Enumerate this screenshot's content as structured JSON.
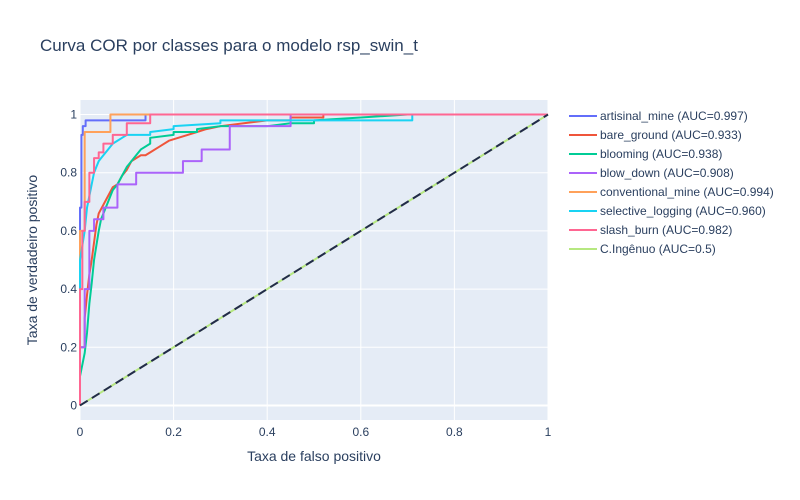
{
  "chart_data": {
    "type": "line",
    "title": "Curva COR por classes para o modelo rsp_swin_t",
    "xlabel": "Taxa de falso positivo",
    "ylabel": "Taxa de verdadeiro positivo",
    "xlim": [
      0,
      1
    ],
    "ylim": [
      -0.05,
      1.05
    ],
    "x_ticks": [
      0,
      0.2,
      0.4,
      0.6,
      0.8,
      1
    ],
    "x_tick_labels": [
      "0",
      "0.2",
      "0.4",
      "0.6",
      "0.8",
      "1"
    ],
    "y_ticks": [
      0,
      0.2,
      0.4,
      0.6,
      0.8,
      1
    ],
    "y_tick_labels": [
      "0",
      "0.2",
      "0.4",
      "0.6",
      "0.8",
      "1"
    ],
    "grid": true,
    "legend_position": "right",
    "series": [
      {
        "name": "artisinal_mine",
        "auc_label": "(AUC=0.997)",
        "color": "#636efa",
        "dash": "solid",
        "x": [
          0,
          0,
          0.003,
          0.003,
          0.006,
          0.006,
          0.012,
          0.012,
          0.14,
          0.14,
          1
        ],
        "y": [
          0,
          0.68,
          0.68,
          0.93,
          0.93,
          0.96,
          0.96,
          0.98,
          0.98,
          1,
          1
        ]
      },
      {
        "name": "bare_ground",
        "auc_label": "(AUC=0.933)",
        "color": "#ef553b",
        "dash": "solid",
        "x": [
          0,
          0,
          0.01,
          0.01,
          0.015,
          0.02,
          0.025,
          0.03,
          0.035,
          0.04,
          0.05,
          0.06,
          0.07,
          0.08,
          0.09,
          0.1,
          0.11,
          0.12,
          0.13,
          0.14,
          0.15,
          0.17,
          0.19,
          0.21,
          0.23,
          0.25,
          0.27,
          0.3,
          0.35,
          0.4,
          0.45,
          0.45,
          0.52,
          0.52,
          1
        ],
        "y": [
          0,
          0.2,
          0.2,
          0.3,
          0.38,
          0.45,
          0.5,
          0.56,
          0.62,
          0.66,
          0.69,
          0.72,
          0.75,
          0.76,
          0.79,
          0.81,
          0.84,
          0.85,
          0.86,
          0.86,
          0.87,
          0.89,
          0.91,
          0.92,
          0.93,
          0.94,
          0.95,
          0.96,
          0.97,
          0.98,
          0.98,
          0.99,
          0.99,
          1,
          1
        ]
      },
      {
        "name": "blooming",
        "auc_label": "(AUC=0.938)",
        "color": "#00cc96",
        "dash": "solid",
        "x": [
          0,
          0,
          0.01,
          0.015,
          0.02,
          0.025,
          0.03,
          0.035,
          0.04,
          0.045,
          0.05,
          0.06,
          0.07,
          0.08,
          0.09,
          0.1,
          0.12,
          0.13,
          0.15,
          0.15,
          0.2,
          0.2,
          0.25,
          0.25,
          0.3,
          0.4,
          0.45,
          0.5,
          0.5,
          0.6,
          0.7,
          1
        ],
        "y": [
          0,
          0.1,
          0.18,
          0.25,
          0.35,
          0.42,
          0.5,
          0.55,
          0.6,
          0.64,
          0.66,
          0.7,
          0.74,
          0.76,
          0.79,
          0.82,
          0.86,
          0.88,
          0.9,
          0.92,
          0.93,
          0.94,
          0.94,
          0.95,
          0.96,
          0.96,
          0.97,
          0.97,
          0.98,
          0.99,
          1,
          1
        ]
      },
      {
        "name": "blow_down",
        "auc_label": "(AUC=0.908)",
        "color": "#ab63fa",
        "dash": "solid",
        "x": [
          0,
          0,
          0.01,
          0.01,
          0.02,
          0.02,
          0.03,
          0.03,
          0.05,
          0.05,
          0.08,
          0.08,
          0.12,
          0.12,
          0.17,
          0.17,
          0.22,
          0.22,
          0.26,
          0.26,
          0.32,
          0.32,
          0.32,
          0.45,
          0.45,
          1
        ],
        "y": [
          0,
          0.2,
          0.2,
          0.4,
          0.4,
          0.6,
          0.6,
          0.64,
          0.64,
          0.68,
          0.68,
          0.76,
          0.76,
          0.8,
          0.8,
          0.8,
          0.8,
          0.84,
          0.84,
          0.88,
          0.88,
          0.92,
          0.96,
          0.96,
          1,
          1
        ]
      },
      {
        "name": "conventional_mine",
        "auc_label": "(AUC=0.994)",
        "color": "#ffa15a",
        "dash": "solid",
        "x": [
          0,
          0,
          0.01,
          0.01,
          0.065,
          0.065,
          1
        ],
        "y": [
          0,
          0.6,
          0.6,
          0.94,
          0.94,
          1,
          1
        ]
      },
      {
        "name": "selective_logging",
        "auc_label": "(AUC=0.960)",
        "color": "#19d3f3",
        "dash": "solid",
        "x": [
          0,
          0,
          0.01,
          0.015,
          0.02,
          0.025,
          0.03,
          0.035,
          0.04,
          0.045,
          0.05,
          0.06,
          0.07,
          0.08,
          0.09,
          0.1,
          0.15,
          0.15,
          0.2,
          0.2,
          0.3,
          0.3,
          0.71,
          0.71,
          1
        ],
        "y": [
          0,
          0.5,
          0.6,
          0.68,
          0.72,
          0.76,
          0.8,
          0.82,
          0.84,
          0.85,
          0.86,
          0.88,
          0.9,
          0.91,
          0.92,
          0.93,
          0.93,
          0.94,
          0.95,
          0.96,
          0.97,
          0.98,
          0.98,
          1,
          1
        ]
      },
      {
        "name": "slash_burn",
        "auc_label": "(AUC=0.982)",
        "color": "#ff6692",
        "dash": "solid",
        "x": [
          0,
          0,
          0.005,
          0.005,
          0.01,
          0.01,
          0.02,
          0.02,
          0.03,
          0.03,
          0.04,
          0.04,
          0.05,
          0.05,
          0.07,
          0.07,
          0.1,
          0.1,
          0.15,
          0.15,
          1
        ],
        "y": [
          0,
          0.4,
          0.4,
          0.6,
          0.6,
          0.7,
          0.7,
          0.8,
          0.8,
          0.85,
          0.85,
          0.87,
          0.87,
          0.9,
          0.9,
          0.93,
          0.93,
          0.97,
          0.97,
          1,
          1
        ]
      },
      {
        "name": "C.Ingênuo",
        "auc_label": "(AUC=0.5)",
        "color": "#b6e880",
        "dash": "solid",
        "x": [
          0,
          1
        ],
        "y": [
          0,
          1
        ]
      }
    ],
    "reference_line": {
      "x": [
        0,
        1
      ],
      "y": [
        0,
        1
      ],
      "color": "#222a4a",
      "dash": "dash"
    }
  }
}
